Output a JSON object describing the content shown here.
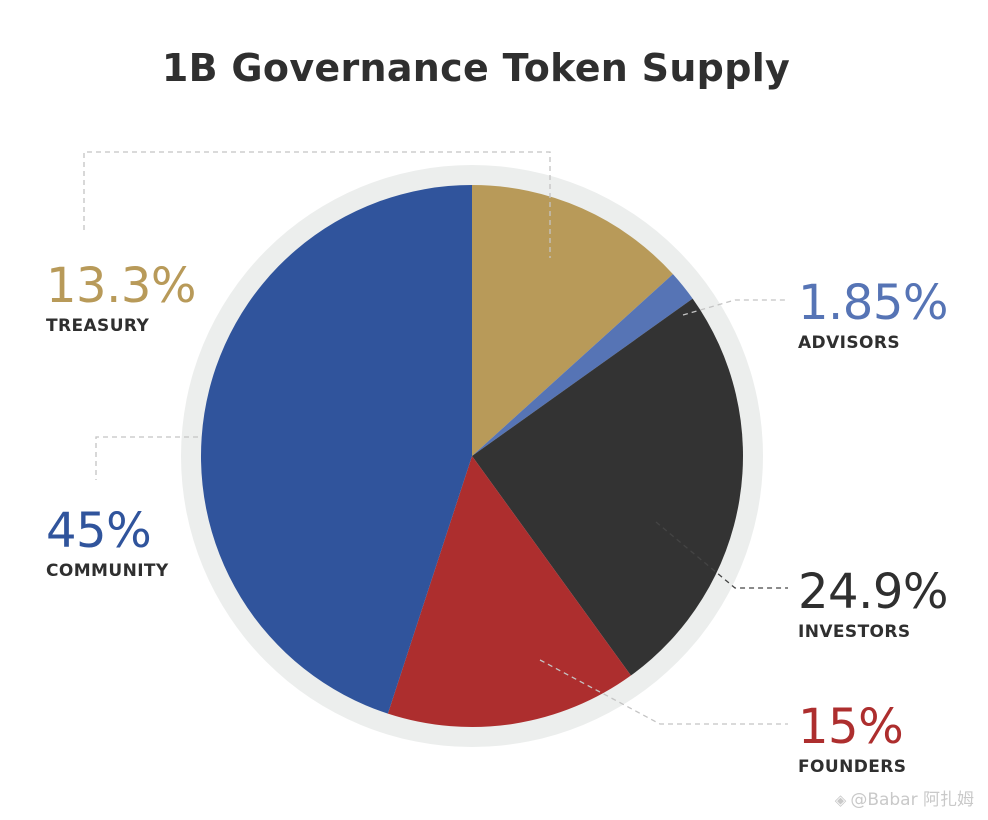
{
  "title": "1B Governance Token Supply",
  "watermark": "@Babar 阿扎姆",
  "chart_data": {
    "type": "pie",
    "title": "1B Governance Token Supply",
    "start": "top, clockwise",
    "slices": [
      {
        "key": "treasury",
        "label": "TREASURY",
        "pct_label": "13.3%",
        "value": 13.3,
        "color": "#b89a59"
      },
      {
        "key": "advisors",
        "label": "ADVISORS",
        "pct_label": "1.85%",
        "value": 1.85,
        "color": "#5674b5"
      },
      {
        "key": "investors",
        "label": "INVESTORS",
        "pct_label": "24.9%",
        "value": 24.9,
        "color": "#333333"
      },
      {
        "key": "founders",
        "label": "FOUNDERS",
        "pct_label": "15%",
        "value": 15,
        "color": "#ad2e2e"
      },
      {
        "key": "community",
        "label": "COMMUNITY",
        "pct_label": "45%",
        "value": 45,
        "color": "#30549c"
      }
    ]
  },
  "colors": {
    "ring": "#eceeed",
    "leader": "#c4c4c4",
    "title_text": "#2f2f2f"
  }
}
